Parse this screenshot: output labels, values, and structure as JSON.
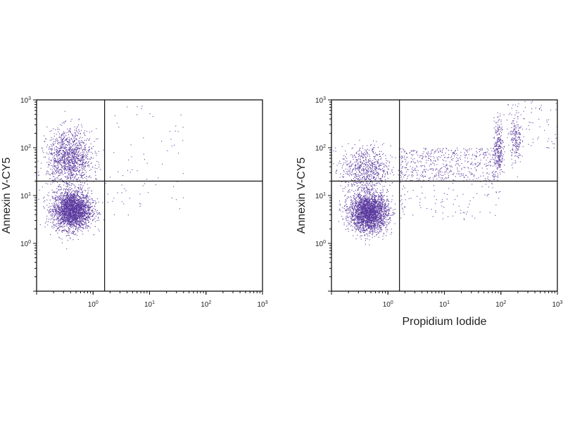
{
  "chart_data": [
    {
      "type": "scatter",
      "xscale": "log",
      "yscale": "log",
      "xlim": [
        0.1,
        1000
      ],
      "ylim": [
        0.1,
        1000
      ],
      "xlabel": "",
      "ylabel": "Annexin V-CY5",
      "x_tick_labels": [
        {
          "base": "10",
          "exp": "0",
          "value": 1
        },
        {
          "base": "10",
          "exp": "1",
          "value": 10
        },
        {
          "base": "10",
          "exp": "2",
          "value": 100
        },
        {
          "base": "10",
          "exp": "3",
          "value": 1000
        }
      ],
      "y_tick_labels": [
        {
          "base": "10",
          "exp": "0",
          "value": 1
        },
        {
          "base": "10",
          "exp": "1",
          "value": 10
        },
        {
          "base": "10",
          "exp": "2",
          "value": 100
        },
        {
          "base": "10",
          "exp": "3",
          "value": 1000
        }
      ],
      "quadrant_gate": {
        "x": 1.6,
        "y": 20
      },
      "point_color": "#5b3a9f",
      "populations": [
        {
          "center_x": 0.42,
          "center_y": 5,
          "sd_log_x": 0.17,
          "sd_log_y": 0.2,
          "count": 2600
        },
        {
          "center_x": 0.38,
          "center_y": 60,
          "sd_log_x": 0.2,
          "sd_log_y": 0.3,
          "count": 1300
        },
        {
          "x_range": [
            1.6,
            40
          ],
          "y_range": [
            4,
            800
          ],
          "count": 70
        }
      ]
    },
    {
      "type": "scatter",
      "xscale": "log",
      "yscale": "log",
      "xlim": [
        0.1,
        1000
      ],
      "ylim": [
        0.1,
        1000
      ],
      "xlabel": "Propidium Iodide",
      "ylabel": "Annexin V-CY5",
      "x_tick_labels": [
        {
          "base": "10",
          "exp": "0",
          "value": 1
        },
        {
          "base": "10",
          "exp": "1",
          "value": 10
        },
        {
          "base": "10",
          "exp": "2",
          "value": 100
        },
        {
          "base": "10",
          "exp": "3",
          "value": 1000
        }
      ],
      "y_tick_labels": [
        {
          "base": "10",
          "exp": "0",
          "value": 1
        },
        {
          "base": "10",
          "exp": "1",
          "value": 10
        },
        {
          "base": "10",
          "exp": "2",
          "value": 100
        },
        {
          "base": "10",
          "exp": "3",
          "value": 1000
        }
      ],
      "quadrant_gate": {
        "x": 1.6,
        "y": 20
      },
      "point_color": "#5b3a9f",
      "populations": [
        {
          "center_x": 0.45,
          "center_y": 4.5,
          "sd_log_x": 0.17,
          "sd_log_y": 0.2,
          "count": 2600
        },
        {
          "center_x": 0.4,
          "center_y": 35,
          "sd_log_x": 0.22,
          "sd_log_y": 0.25,
          "count": 700
        },
        {
          "x_range": [
            1.6,
            80
          ],
          "y_range": [
            20,
            100
          ],
          "count": 550
        },
        {
          "center_x": 90,
          "center_y": 100,
          "sd_log_x": 0.04,
          "sd_log_y": 0.3,
          "count": 280
        },
        {
          "center_x": 180,
          "center_y": 150,
          "sd_log_x": 0.05,
          "sd_log_y": 0.25,
          "count": 170
        },
        {
          "x_range": [
            100,
            1000
          ],
          "y_range": [
            100,
            1000
          ],
          "count": 80
        },
        {
          "x_range": [
            1.6,
            100
          ],
          "y_range": [
            3,
            20
          ],
          "count": 90
        }
      ]
    }
  ]
}
